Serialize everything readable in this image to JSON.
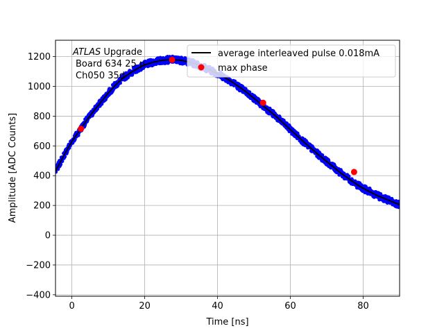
{
  "chart_data": {
    "type": "scatter",
    "title": "",
    "xlabel": "Time [ns]",
    "ylabel": "Amplitude [ADC Counts]",
    "xlim": [
      -4.5,
      90
    ],
    "ylim": [
      -410,
      1310
    ],
    "grid": true,
    "x_ticks": [
      0,
      20,
      40,
      60,
      80
    ],
    "x_tick_labels": [
      "0",
      "20",
      "40",
      "60",
      "80"
    ],
    "y_ticks": [
      -400,
      -200,
      0,
      200,
      400,
      600,
      800,
      1000,
      1200
    ],
    "y_tick_labels": [
      "−400",
      "−200",
      "0",
      "200",
      "400",
      "600",
      "800",
      "1000",
      "1200"
    ],
    "annotation": {
      "prefix": "ATLAS",
      "suffix": " Upgrade",
      "line2": "Board 634 25 µ",
      "line3": "Ch050 35d"
    },
    "legend": {
      "position": "top-right",
      "entries": [
        {
          "label": "average interleaved pulse 0.018mA",
          "kind": "line",
          "color": "#000000"
        },
        {
          "label": "max phase",
          "kind": "marker",
          "color": "#ff0000"
        }
      ]
    },
    "series": [
      {
        "kind": "scatter",
        "color": "#0000ff",
        "x": [
          -4.5,
          -2,
          0,
          2,
          4,
          6,
          8,
          10,
          12,
          14,
          16,
          18,
          20,
          22,
          24,
          26,
          28,
          30,
          32,
          34,
          36,
          38,
          40,
          42,
          44,
          46,
          48,
          50,
          52,
          54,
          56,
          58,
          60,
          62,
          64,
          66,
          68,
          70,
          72,
          74,
          76,
          78,
          80,
          82,
          84,
          86,
          88,
          90
        ],
        "y": [
          430,
          545,
          630,
          700,
          770,
          835,
          895,
          955,
          1010,
          1055,
          1090,
          1120,
          1145,
          1160,
          1172,
          1178,
          1180,
          1175,
          1165,
          1150,
          1130,
          1110,
          1085,
          1060,
          1030,
          995,
          960,
          920,
          880,
          840,
          800,
          755,
          710,
          665,
          620,
          578,
          535,
          495,
          455,
          415,
          380,
          345,
          315,
          290,
          265,
          245,
          225,
          205
        ]
      },
      {
        "kind": "line",
        "name": "average interleaved pulse 0.018mA",
        "color": "#000000",
        "x": [
          -4.5,
          -2,
          0,
          2,
          4,
          6,
          8,
          10,
          12,
          14,
          16,
          18,
          20,
          22,
          24,
          26,
          28,
          30,
          32,
          34,
          36,
          38,
          40,
          42,
          44,
          46,
          48,
          50,
          52,
          54,
          56,
          58,
          60,
          62,
          64,
          66,
          68,
          70,
          72,
          74,
          76,
          78,
          80,
          82,
          84,
          86,
          88,
          90
        ],
        "y": [
          430,
          545,
          630,
          700,
          770,
          835,
          895,
          955,
          1010,
          1055,
          1090,
          1120,
          1145,
          1160,
          1172,
          1178,
          1180,
          1175,
          1165,
          1150,
          1130,
          1110,
          1085,
          1060,
          1030,
          995,
          960,
          920,
          880,
          840,
          800,
          755,
          710,
          665,
          620,
          578,
          535,
          495,
          455,
          415,
          380,
          345,
          315,
          290,
          265,
          245,
          225,
          205
        ]
      },
      {
        "kind": "scatter",
        "name": "max phase",
        "color": "#ff0000",
        "x": [
          2.5,
          27.5,
          52.5,
          77.5
        ],
        "y": [
          715,
          1178,
          890,
          425
        ]
      }
    ]
  }
}
